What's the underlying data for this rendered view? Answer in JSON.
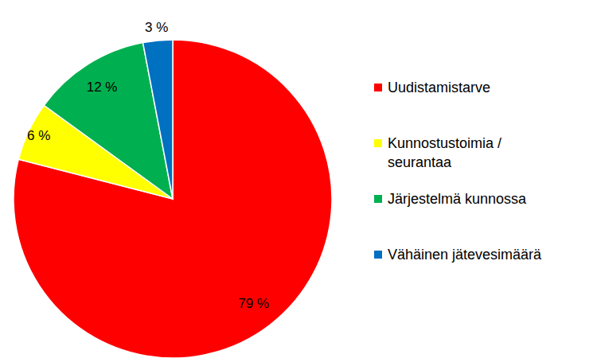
{
  "chart_data": {
    "type": "pie",
    "categories": [
      "Uudistamistarve",
      "Kunnostustoimia / seurantaa",
      "Järjestelmä kunnossa",
      "Vähäinen jätevesimäärä"
    ],
    "values": [
      79,
      6,
      12,
      3
    ],
    "value_labels": [
      "79 %",
      "6 %",
      "12 %",
      "3 %"
    ],
    "colors": [
      "#ff0000",
      "#ffff00",
      "#00b050",
      "#0070c0"
    ],
    "data_labels": true,
    "legend": "right"
  }
}
